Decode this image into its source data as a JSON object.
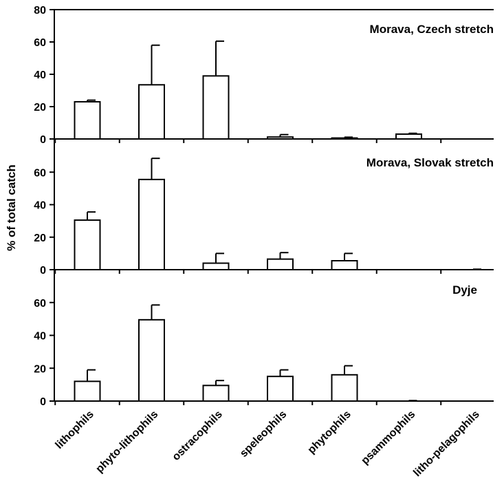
{
  "ylabel": "% of total catch",
  "categories": [
    "lithophils",
    "phyto-lithophils",
    "ostracophils",
    "speleophils",
    "phytophils",
    "psammophils",
    "litho-pelagophils"
  ],
  "chart_data": [
    {
      "type": "bar",
      "title": "Morava, Czech stretch",
      "categories": [
        "lithophils",
        "phyto-lithophils",
        "ostracophils",
        "speleophils",
        "phytophils",
        "psammophils",
        "litho-pelagophils"
      ],
      "values": [
        23,
        33.5,
        39,
        1.2,
        0.6,
        3,
        0
      ],
      "errors": [
        1,
        24.5,
        21.5,
        1.5,
        0.5,
        0.5,
        0
      ],
      "ylim": [
        0,
        80
      ],
      "yticks": [
        0,
        20,
        40,
        60,
        80
      ],
      "ylabel": "% of total catch",
      "xlabel": "",
      "grid": false
    },
    {
      "type": "bar",
      "title": "Morava, Slovak stretch",
      "categories": [
        "lithophils",
        "phyto-lithophils",
        "ostracophils",
        "speleophils",
        "phytophils",
        "psammophils",
        "litho-pelagophils"
      ],
      "values": [
        30.5,
        55.5,
        4,
        6.5,
        5.5,
        0,
        0
      ],
      "errors": [
        5,
        13,
        6,
        4,
        4.5,
        0,
        0.3
      ],
      "ylim": [
        0,
        80
      ],
      "yticks": [
        0,
        20,
        40,
        60
      ],
      "ylabel": "% of total catch",
      "xlabel": "",
      "grid": false
    },
    {
      "type": "bar",
      "title": "Dyje",
      "categories": [
        "lithophils",
        "phyto-lithophils",
        "ostracophils",
        "speleophils",
        "phytophils",
        "psammophils",
        "litho-pelagophils"
      ],
      "values": [
        12,
        49.5,
        9.5,
        15,
        16,
        0,
        0
      ],
      "errors": [
        7,
        9,
        3,
        4,
        5.5,
        0.3,
        0
      ],
      "ylim": [
        0,
        80
      ],
      "yticks": [
        0,
        20,
        40,
        60
      ],
      "ylabel": "% of total catch",
      "xlabel": "",
      "grid": false
    }
  ]
}
